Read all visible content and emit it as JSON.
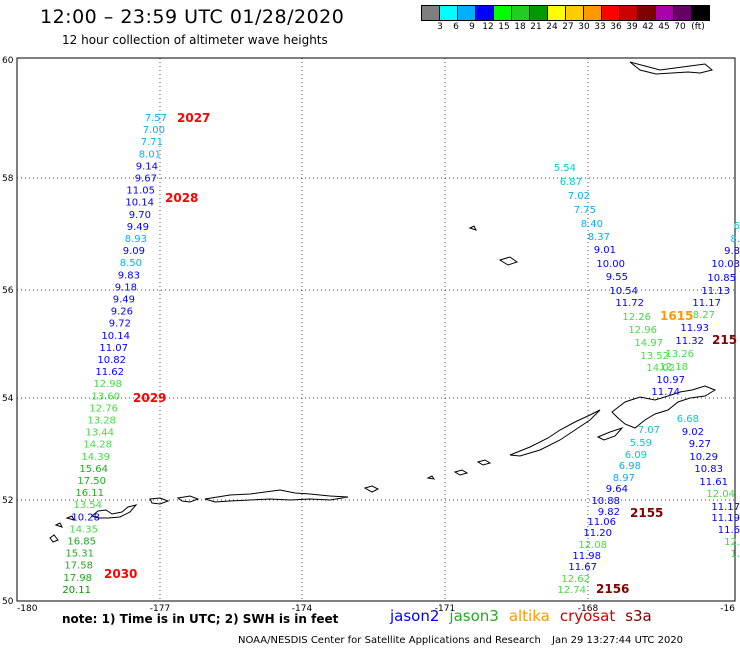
{
  "header": {
    "title": "12:00 – 23:59 UTC 01/28/2020",
    "subtitle": "12 hour collection of altimeter wave heights"
  },
  "colorbar": {
    "unit": "(ft)",
    "labels": [
      "3",
      "6",
      "9",
      "12",
      "15",
      "18",
      "21",
      "24",
      "27",
      "30",
      "33",
      "36",
      "39",
      "42",
      "45",
      "70"
    ],
    "colors": [
      "#7f7f7f",
      "#00ffff",
      "#00b0ff",
      "#0000ff",
      "#00ff00",
      "#22cc22",
      "#009900",
      "#ffff00",
      "#ffcc00",
      "#ff9900",
      "#ff0000",
      "#cc0000",
      "#800000",
      "#aa00aa",
      "#660066",
      "#000000"
    ]
  },
  "map": {
    "lat_labels": [
      "60",
      "58",
      "56",
      "54",
      "52",
      "50"
    ],
    "lon_labels": [
      "-180",
      "-177",
      "-174",
      "-171",
      "-168",
      "-16"
    ]
  },
  "tracks": [
    {
      "id": "2027",
      "color": "#ff0000"
    },
    {
      "id": "2028",
      "color": "#ff0000"
    },
    {
      "id": "2029",
      "color": "#ff0000"
    },
    {
      "id": "2030",
      "color": "#ff0000"
    },
    {
      "id": "1615",
      "color": "#ff9900"
    },
    {
      "id": "215",
      "color": "#800000"
    },
    {
      "id": "2155",
      "color": "#800000"
    },
    {
      "id": "2156",
      "color": "#800000"
    }
  ],
  "readings": {
    "track_2027_2030": [
      {
        "v": "7.57",
        "c": "#00b0ff"
      },
      {
        "v": "7.00",
        "c": "#00b0ff"
      },
      {
        "v": "7.71",
        "c": "#00b0ff"
      },
      {
        "v": "8.01",
        "c": "#00b0ff"
      },
      {
        "v": "9.14",
        "c": "#0000ff"
      },
      {
        "v": "9.67",
        "c": "#0000ff"
      },
      {
        "v": "11.05",
        "c": "#0000ff"
      },
      {
        "v": "10.14",
        "c": "#0000ff"
      },
      {
        "v": "9.70",
        "c": "#0000ff"
      },
      {
        "v": "9.49",
        "c": "#0000ff"
      },
      {
        "v": "8.93",
        "c": "#00b0ff"
      },
      {
        "v": "9.09",
        "c": "#0000ff"
      },
      {
        "v": "8.50",
        "c": "#00b0ff"
      },
      {
        "v": "9.83",
        "c": "#0000ff"
      },
      {
        "v": "9.18",
        "c": "#0000ff"
      },
      {
        "v": "9.49",
        "c": "#0000ff"
      },
      {
        "v": "9.26",
        "c": "#0000ff"
      },
      {
        "v": "9.72",
        "c": "#0000ff"
      },
      {
        "v": "10.14",
        "c": "#0000ff"
      },
      {
        "v": "11.07",
        "c": "#0000ff"
      },
      {
        "v": "10.82",
        "c": "#0000ff"
      },
      {
        "v": "11.62",
        "c": "#0000ff"
      },
      {
        "v": "12.98",
        "c": "#44dd44"
      },
      {
        "v": "13.60",
        "c": "#44dd44"
      },
      {
        "v": "12.76",
        "c": "#44dd44"
      },
      {
        "v": "13.28",
        "c": "#44dd44"
      },
      {
        "v": "13.44",
        "c": "#44dd44"
      },
      {
        "v": "14.28",
        "c": "#44dd44"
      },
      {
        "v": "14.39",
        "c": "#44dd44"
      },
      {
        "v": "15.64",
        "c": "#22aa22"
      },
      {
        "v": "17.50",
        "c": "#22aa22"
      },
      {
        "v": "16.11",
        "c": "#22aa22"
      },
      {
        "v": "13.54",
        "c": "#44dd44"
      },
      {
        "v": "10.28",
        "c": "#0000ff"
      },
      {
        "v": "14.35",
        "c": "#44dd44"
      },
      {
        "v": "16.85",
        "c": "#22aa22"
      },
      {
        "v": "15.31",
        "c": "#22aa22"
      },
      {
        "v": "17.58",
        "c": "#22aa22"
      },
      {
        "v": "17.98",
        "c": "#22aa22"
      },
      {
        "v": "20.11",
        "c": "#009900"
      }
    ],
    "track_2155_2156": [
      {
        "v": "5.54",
        "c": "#00cccc"
      },
      {
        "v": "6.87",
        "c": "#00cccc"
      },
      {
        "v": "7.02",
        "c": "#00b0ff"
      },
      {
        "v": "7.75",
        "c": "#00b0ff"
      },
      {
        "v": "8.40",
        "c": "#00b0ff"
      },
      {
        "v": "8.37",
        "c": "#00b0ff"
      },
      {
        "v": "9.01",
        "c": "#0000ff"
      },
      {
        "v": "10.00",
        "c": "#0000ff"
      },
      {
        "v": "9.55",
        "c": "#0000ff"
      },
      {
        "v": "10.54",
        "c": "#0000ff"
      },
      {
        "v": "11.72",
        "c": "#0000ff"
      },
      {
        "v": "12.26",
        "c": "#44dd44"
      },
      {
        "v": "12.96",
        "c": "#44dd44"
      },
      {
        "v": "14.97",
        "c": "#44dd44"
      },
      {
        "v": "13.52",
        "c": "#44dd44"
      },
      {
        "v": "14.02",
        "c": "#44dd44"
      },
      {
        "v": "11.74",
        "c": "#0000ff"
      },
      {
        "v": "7.07",
        "c": "#00cccc"
      },
      {
        "v": "5.59",
        "c": "#00cccc"
      },
      {
        "v": "6.09",
        "c": "#00cccc"
      },
      {
        "v": "6.98",
        "c": "#00b0ff"
      },
      {
        "v": "8.97",
        "c": "#00b0ff"
      },
      {
        "v": "9.64",
        "c": "#0000ff"
      },
      {
        "v": "10.88",
        "c": "#0000ff"
      },
      {
        "v": "9.82",
        "c": "#0000ff"
      },
      {
        "v": "11.06",
        "c": "#0000ff"
      },
      {
        "v": "11.20",
        "c": "#0000ff"
      },
      {
        "v": "12.08",
        "c": "#44dd44"
      },
      {
        "v": "11.98",
        "c": "#0000ff"
      },
      {
        "v": "11.67",
        "c": "#0000ff"
      },
      {
        "v": "12.62",
        "c": "#44dd44"
      },
      {
        "v": "12.74",
        "c": "#44dd44"
      }
    ],
    "track_1615": [
      {
        "v": "8.27",
        "c": "#44dd44"
      },
      {
        "v": "11.93",
        "c": "#0000ff"
      },
      {
        "v": "11.32",
        "c": "#0000ff"
      },
      {
        "v": "13.26",
        "c": "#44dd44"
      },
      {
        "v": "12.18",
        "c": "#44dd44"
      },
      {
        "v": "10.97",
        "c": "#0000ff"
      }
    ],
    "track_215": [
      {
        "v": "6",
        "c": "#00cccc"
      },
      {
        "v": "8.",
        "c": "#00b0ff"
      },
      {
        "v": "9.8",
        "c": "#0000ff"
      },
      {
        "v": "10.03",
        "c": "#0000ff"
      },
      {
        "v": "10.85",
        "c": "#0000ff"
      },
      {
        "v": "11.13",
        "c": "#0000ff"
      },
      {
        "v": "11.17",
        "c": "#0000ff"
      },
      {
        "v": "6.68",
        "c": "#00cccc"
      },
      {
        "v": "9.02",
        "c": "#0000ff"
      },
      {
        "v": "9.27",
        "c": "#0000ff"
      },
      {
        "v": "10.29",
        "c": "#0000ff"
      },
      {
        "v": "10.83",
        "c": "#0000ff"
      },
      {
        "v": "11.61",
        "c": "#0000ff"
      },
      {
        "v": "12.04",
        "c": "#44dd44"
      },
      {
        "v": "11.17",
        "c": "#0000ff"
      },
      {
        "v": "11.19",
        "c": "#0000ff"
      },
      {
        "v": "11.6",
        "c": "#0000ff"
      },
      {
        "v": "12.",
        "c": "#44dd44"
      },
      {
        "v": "1.",
        "c": "#44dd44"
      }
    ]
  },
  "footer": {
    "note": "note:  1) Time is in UTC;  2) SWH is in feet",
    "satellites": [
      {
        "name": "jason2",
        "color": "#0000ff"
      },
      {
        "name": "jason3",
        "color": "#22aa22"
      },
      {
        "name": "altika",
        "color": "#ff9900"
      },
      {
        "name": "cryosat",
        "color": "#cc0000"
      },
      {
        "name": "s3a",
        "color": "#800000"
      }
    ],
    "credit": "NOAA/NESDIS Center for Satellite Applications and Research",
    "timestamp": "Jan 29 13:27:44 UTC 2020"
  }
}
